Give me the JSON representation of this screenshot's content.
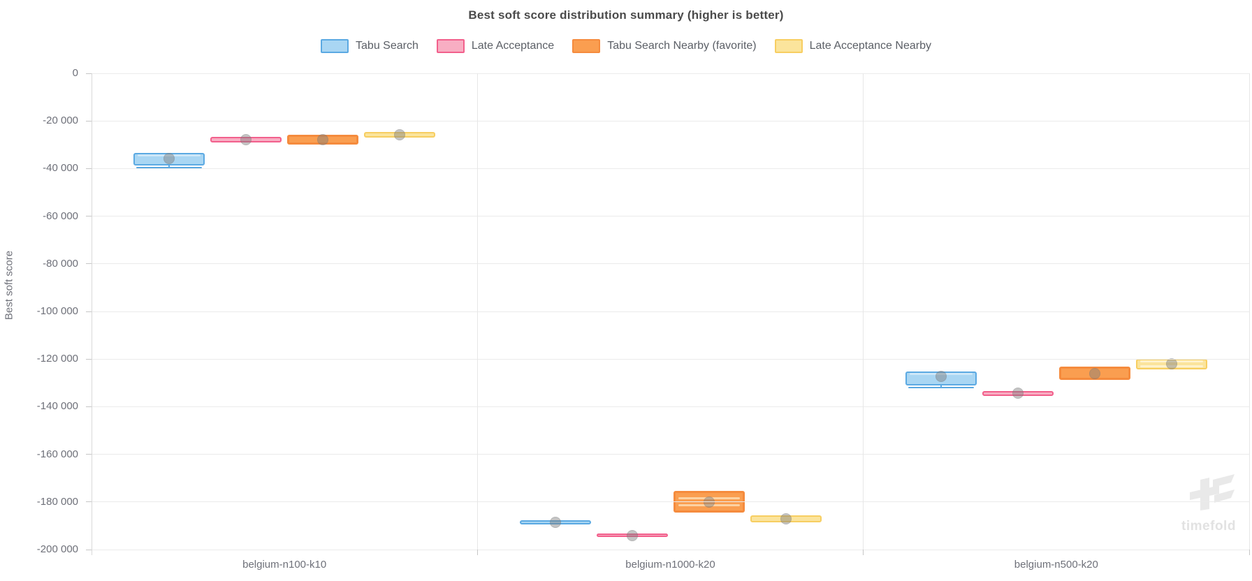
{
  "title": "Best soft score distribution summary (higher is better)",
  "y_axis": {
    "label": "Best soft score",
    "tick_labels": [
      "0",
      "-20 000",
      "-40 000",
      "-60 000",
      "-80 000",
      "-100 000",
      "-120 000",
      "-140 000",
      "-160 000",
      "-180 000",
      "-200 000"
    ],
    "min": -200000,
    "max": 0
  },
  "watermark": {
    "text": "timefold"
  },
  "chart_data": {
    "type": "boxplot",
    "title": "Best soft score distribution summary (higher is better)",
    "xlabel": "",
    "ylabel": "Best soft score",
    "ylim": [
      -200000,
      0
    ],
    "grid": true,
    "legend_position": "top",
    "categories": [
      "belgium-n100-k10",
      "belgium-n1000-k20",
      "belgium-n500-k20"
    ],
    "series": [
      {
        "name": "Tabu Search",
        "favorite": false,
        "colors": {
          "border": "#5BA9E2",
          "fill": "#A9D6F3",
          "stripe": "#cde7f8"
        },
        "boxes": [
          {
            "high": -33500,
            "low": -38800,
            "mean": -35800,
            "lines": [
              -34600
            ],
            "whisker_min": -39600
          },
          {
            "high": -187700,
            "low": -189500,
            "mean": -188600,
            "lines": [],
            "whisker_min": null
          },
          {
            "high": -125100,
            "low": -131000,
            "mean": -127400,
            "lines": [
              -126300
            ],
            "whisker_min": -131900
          }
        ]
      },
      {
        "name": "Late Acceptance",
        "favorite": false,
        "colors": {
          "border": "#F2608C",
          "fill": "#F8AEC3",
          "stripe": "#fbd0dc"
        },
        "boxes": [
          {
            "high": -26800,
            "low": -29000,
            "mean": -27900,
            "lines": [],
            "whisker_min": null
          },
          {
            "high": -193200,
            "low": -194800,
            "mean": -194000,
            "lines": [],
            "whisker_min": null
          },
          {
            "high": -133300,
            "low": -135400,
            "mean": -134400,
            "lines": [],
            "whisker_min": null
          }
        ]
      },
      {
        "name": "Tabu Search Nearby (favorite)",
        "favorite": true,
        "colors": {
          "border": "#F58B3D",
          "fill": "#FA9E50",
          "stripe": "#FCD2A2"
        },
        "boxes": [
          {
            "high": -25900,
            "low": -30000,
            "mean": -28000,
            "lines": [],
            "whisker_min": null
          },
          {
            "high": -175300,
            "low": -184400,
            "mean": -180000,
            "lines": [
              -178500,
              -181500
            ],
            "whisker_min": null
          },
          {
            "high": -123300,
            "low": -128600,
            "mean": -126000,
            "lines": [],
            "whisker_min": null
          }
        ]
      },
      {
        "name": "Late Acceptance Nearby",
        "favorite": false,
        "colors": {
          "border": "#F7CE61",
          "fill": "#FBE49C",
          "stripe": "#FEF2CC"
        },
        "boxes": [
          {
            "high": -24700,
            "low": -27000,
            "mean": -25700,
            "lines": [
              -25800
            ],
            "whisker_min": null
          },
          {
            "high": -185600,
            "low": -188500,
            "mean": -187000,
            "lines": [
              -187000
            ],
            "whisker_min": null
          },
          {
            "high": -119800,
            "low": -124200,
            "mean": -121900,
            "lines": [
              -121000,
              -122900
            ],
            "whisker_min": null
          }
        ]
      }
    ]
  }
}
